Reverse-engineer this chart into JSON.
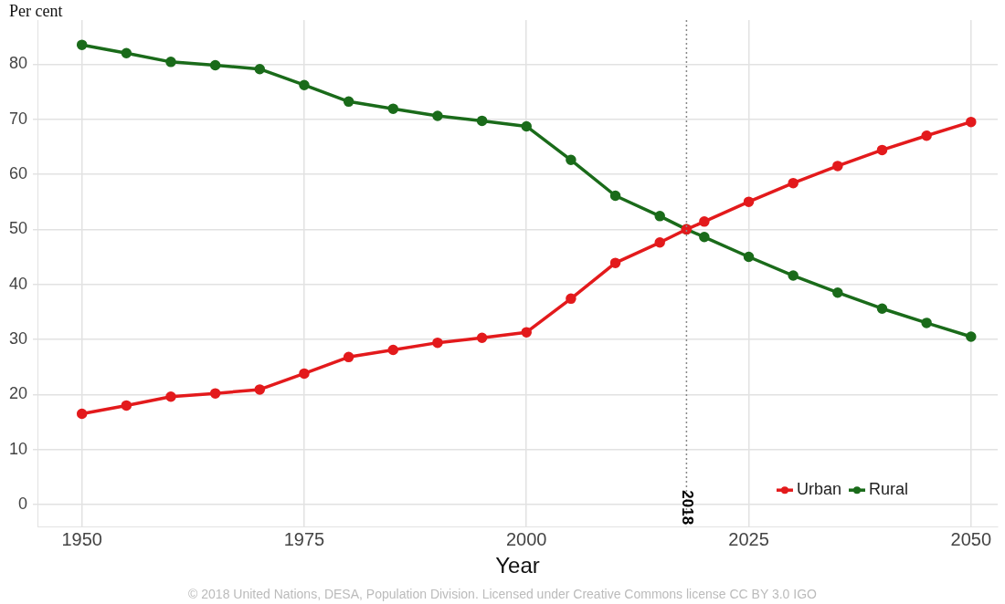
{
  "chart_data": {
    "type": "line",
    "xlabel": "Year",
    "ylabel": "Per cent",
    "x": [
      1950,
      1955,
      1960,
      1965,
      1970,
      1975,
      1980,
      1985,
      1990,
      1995,
      2000,
      2005,
      2010,
      2015,
      2018,
      2020,
      2025,
      2030,
      2035,
      2040,
      2045,
      2050
    ],
    "series": [
      {
        "name": "Urban",
        "color": "#e31a1c",
        "values": [
          16.5,
          18,
          19.6,
          20.2,
          20.9,
          23.8,
          26.8,
          28.1,
          29.4,
          30.3,
          31.3,
          37.4,
          43.9,
          47.6,
          50,
          51.4,
          55,
          58.4,
          61.5,
          64.4,
          67,
          69.5
        ]
      },
      {
        "name": "Rural",
        "color": "#1a6b1a",
        "values": [
          83.5,
          82,
          80.4,
          79.8,
          79.1,
          76.2,
          73.2,
          71.9,
          70.6,
          69.7,
          68.7,
          62.6,
          56.1,
          52.4,
          50,
          48.6,
          45,
          41.6,
          38.5,
          35.6,
          33,
          30.5
        ]
      }
    ],
    "xlim": [
      1945,
      2053
    ],
    "xticks": [
      1950,
      1975,
      2000,
      2025,
      2050
    ],
    "ylim": [
      -4,
      88
    ],
    "yticks": [
      0,
      10,
      20,
      30,
      40,
      50,
      60,
      70,
      80
    ],
    "ref_lines": [
      {
        "axis": "x",
        "value": 2018,
        "label": "2018",
        "line_style": "dotted",
        "color": "#888888"
      }
    ],
    "grid": true,
    "legend": "bottom right",
    "marker": "circle",
    "line_style": "solid",
    "annotations": [
      "© 2018 United Nations, DESA, Population Division. Licensed under Creative Commons license CC BY 3.0 IGO"
    ]
  }
}
